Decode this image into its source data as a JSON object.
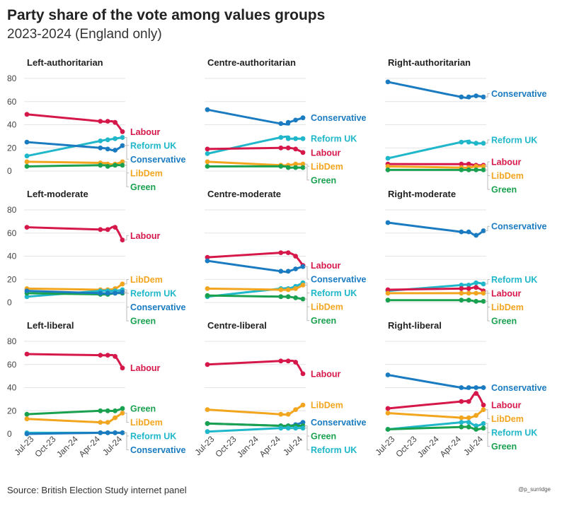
{
  "header": {
    "title": "Party share of the vote among values groups",
    "subtitle": "2023-2024 (England only)"
  },
  "footer": {
    "source": "Source: British Election Study internet panel",
    "credit": "@p_surridge"
  },
  "colors": {
    "Labour": "#d6174a",
    "Conservative": "#1a7bc0",
    "Reform UK": "#1fb7c9",
    "LibDem": "#f2a51e",
    "Green": "#1aa150"
  },
  "chart_data": {
    "type": "line",
    "x": [
      "2023-06",
      "2024-04",
      "2024-05",
      "2024-06",
      "2024-07"
    ],
    "x_ticks": [
      "Jul-23",
      "Oct-23",
      "Jan-24",
      "Apr-24",
      "Jul-24"
    ],
    "ylim": [
      0,
      80
    ],
    "y_ticks": [
      0,
      20,
      40,
      60,
      80
    ],
    "grid": "horizontal",
    "panels": [
      {
        "name": "Left-authoritarian",
        "series": [
          {
            "name": "Labour",
            "values": [
              49,
              43,
              43,
              42,
              34
            ]
          },
          {
            "name": "Reform UK",
            "values": [
              13,
              26,
              27,
              28,
              29
            ]
          },
          {
            "name": "Conservative",
            "values": [
              25,
              20,
              19,
              18,
              22
            ]
          },
          {
            "name": "LibDem",
            "values": [
              8,
              7,
              6,
              6,
              8
            ]
          },
          {
            "name": "Green",
            "values": [
              4,
              5,
              4,
              5,
              5
            ]
          }
        ]
      },
      {
        "name": "Centre-authoritarian",
        "series": [
          {
            "name": "Conservative",
            "values": [
              53,
              41,
              42,
              44,
              46
            ]
          },
          {
            "name": "Reform UK",
            "values": [
              15,
              29,
              28,
              28,
              28
            ]
          },
          {
            "name": "Labour",
            "values": [
              19,
              20,
              20,
              19,
              16
            ]
          },
          {
            "name": "LibDem",
            "values": [
              8,
              5,
              5,
              6,
              6
            ]
          },
          {
            "name": "Green",
            "values": [
              4,
              4,
              3,
              3,
              3
            ]
          }
        ]
      },
      {
        "name": "Right-authoritarian",
        "series": [
          {
            "name": "Conservative",
            "values": [
              77,
              64,
              64,
              65,
              64
            ]
          },
          {
            "name": "Reform UK",
            "values": [
              11,
              25,
              25,
              24,
              24
            ]
          },
          {
            "name": "Labour",
            "values": [
              6,
              6,
              6,
              5,
              5
            ]
          },
          {
            "name": "LibDem",
            "values": [
              4,
              3,
              3,
              4,
              4
            ]
          },
          {
            "name": "Green",
            "values": [
              1,
              1,
              1,
              1,
              1
            ]
          }
        ]
      },
      {
        "name": "Left-moderate",
        "series": [
          {
            "name": "Labour",
            "values": [
              65,
              63,
              63,
              65,
              54
            ]
          },
          {
            "name": "LibDem",
            "values": [
              12,
              11,
              11,
              12,
              16
            ]
          },
          {
            "name": "Reform UK",
            "values": [
              5,
              10,
              10,
              10,
              11
            ]
          },
          {
            "name": "Green",
            "values": [
              8,
              7,
              7,
              8,
              8
            ]
          },
          {
            "name": "Conservative",
            "values": [
              10,
              8,
              8,
              8,
              9
            ]
          }
        ]
      },
      {
        "name": "Centre-moderate",
        "series": [
          {
            "name": "Labour",
            "values": [
              39,
              43,
              43,
              40,
              32
            ]
          },
          {
            "name": "Conservative",
            "values": [
              36,
              27,
              27,
              29,
              31
            ]
          },
          {
            "name": "Reform UK",
            "values": [
              5,
              12,
              12,
              14,
              17
            ]
          },
          {
            "name": "LibDem",
            "values": [
              12,
              11,
              11,
              12,
              15
            ]
          },
          {
            "name": "Green",
            "values": [
              6,
              5,
              5,
              4,
              3
            ]
          }
        ]
      },
      {
        "name": "Right-moderate",
        "series": [
          {
            "name": "Conservative",
            "values": [
              69,
              61,
              61,
              58,
              62
            ]
          },
          {
            "name": "Reform UK",
            "values": [
              10,
              15,
              15,
              17,
              16
            ]
          },
          {
            "name": "Labour",
            "values": [
              11,
              12,
              12,
              13,
              10
            ]
          },
          {
            "name": "LibDem",
            "values": [
              8,
              8,
              8,
              8,
              8
            ]
          },
          {
            "name": "Green",
            "values": [
              2,
              2,
              2,
              1,
              1
            ]
          }
        ]
      },
      {
        "name": "Left-liberal",
        "series": [
          {
            "name": "Labour",
            "values": [
              69,
              68,
              68,
              67,
              57
            ]
          },
          {
            "name": "Green",
            "values": [
              17,
              20,
              20,
              20,
              22
            ]
          },
          {
            "name": "LibDem",
            "values": [
              13,
              10,
              10,
              14,
              18
            ]
          },
          {
            "name": "Reform UK",
            "values": [
              1,
              1,
              1,
              1,
              1
            ]
          },
          {
            "name": "Conservative",
            "values": [
              0,
              1,
              1,
              1,
              1
            ]
          }
        ]
      },
      {
        "name": "Centre-liberal",
        "series": [
          {
            "name": "Labour",
            "values": [
              60,
              63,
              63,
              62,
              52
            ]
          },
          {
            "name": "LibDem",
            "values": [
              21,
              17,
              17,
              21,
              25
            ]
          },
          {
            "name": "Conservative",
            "values": [
              9,
              7,
              7,
              8,
              10
            ]
          },
          {
            "name": "Green",
            "values": [
              9,
              7,
              7,
              7,
              7
            ]
          },
          {
            "name": "Reform UK",
            "values": [
              2,
              5,
              5,
              5,
              5
            ]
          }
        ]
      },
      {
        "name": "Right-liberal",
        "series": [
          {
            "name": "Conservative",
            "values": [
              51,
              40,
              40,
              40,
              40
            ]
          },
          {
            "name": "Labour",
            "values": [
              22,
              28,
              28,
              35,
              25
            ]
          },
          {
            "name": "LibDem",
            "values": [
              18,
              14,
              14,
              16,
              21
            ]
          },
          {
            "name": "Reform UK",
            "values": [
              4,
              10,
              10,
              7,
              9
            ]
          },
          {
            "name": "Green",
            "values": [
              4,
              6,
              6,
              4,
              5
            ]
          }
        ]
      }
    ]
  }
}
